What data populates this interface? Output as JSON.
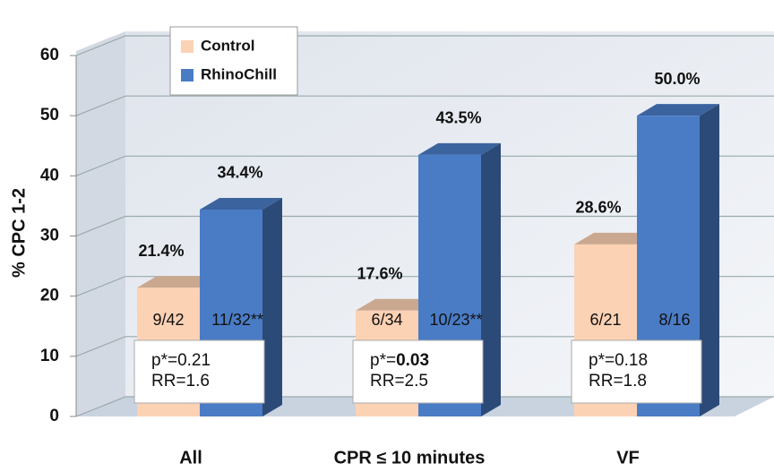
{
  "chart_data": {
    "type": "bar3d",
    "y_label": "% CPC 1-2",
    "categories": [
      "All",
      "CPR ≤ 10 minutes",
      "VF"
    ],
    "series": [
      {
        "name": "Control",
        "color": "#fcd2b4",
        "values": [
          21.4,
          17.6,
          28.6
        ],
        "value_labels": [
          "21.4%",
          "17.6%",
          "28.6%"
        ]
      },
      {
        "name": "RhinoChill",
        "color": "#4a7cc6",
        "values": [
          34.4,
          43.5,
          50.0
        ],
        "value_labels": [
          "34.4%",
          "43.5%",
          "50.0%"
        ]
      }
    ],
    "ylim": [
      0,
      60
    ],
    "yticks": [
      0,
      10,
      20,
      30,
      40,
      50,
      60
    ],
    "grid": true,
    "legend": "top-left",
    "annotations": [
      {
        "control_n": "9/42",
        "rhinochill_n": "11/32**",
        "p_text": "p*=",
        "p": "0.21",
        "rr": "RR=1.6",
        "p_bold": false
      },
      {
        "control_n": "6/34",
        "rhinochill_n": "10/23**",
        "p_text": "p*=",
        "p": "0.03",
        "rr": "RR=2.5",
        "p_bold": true
      },
      {
        "control_n": "6/21",
        "rhinochill_n": "8/16",
        "p_text": "p*=",
        "p": "0.18",
        "rr": "RR=1.8",
        "p_bold": false
      }
    ]
  }
}
